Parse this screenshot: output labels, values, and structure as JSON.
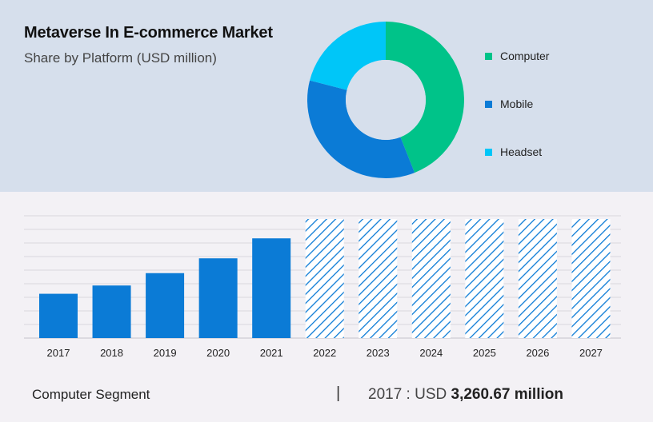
{
  "header": {
    "title": "Metaverse In E-commerce Market",
    "subtitle": "Share by Platform (USD million)"
  },
  "colors": {
    "computer": "#00c389",
    "mobile": "#0b7bd6",
    "headset": "#00c6f8",
    "bar": "#0b7bd6",
    "hatch": "#0b7bd6"
  },
  "chart_data": [
    {
      "type": "pie",
      "variant": "donut",
      "slices": [
        {
          "label": "Computer",
          "value": 44
        },
        {
          "label": "Mobile",
          "value": 35
        },
        {
          "label": "Headset",
          "value": 21
        }
      ],
      "legend_position": "right"
    },
    {
      "type": "bar",
      "categories": [
        "2017",
        "2018",
        "2019",
        "2020",
        "2021",
        "2022",
        "2023",
        "2024",
        "2025",
        "2026",
        "2027"
      ],
      "values": [
        3260.67,
        3870,
        4780,
        5870,
        7340,
        null,
        null,
        null,
        null,
        null,
        null
      ],
      "forecast_start_index": 5,
      "ylim": [
        0,
        9000
      ],
      "grid": true
    }
  ],
  "footer": {
    "segment_label": "Computer Segment",
    "separator": "|",
    "year_prefix": "2017 : USD ",
    "value_text": "3,260.67 million"
  }
}
